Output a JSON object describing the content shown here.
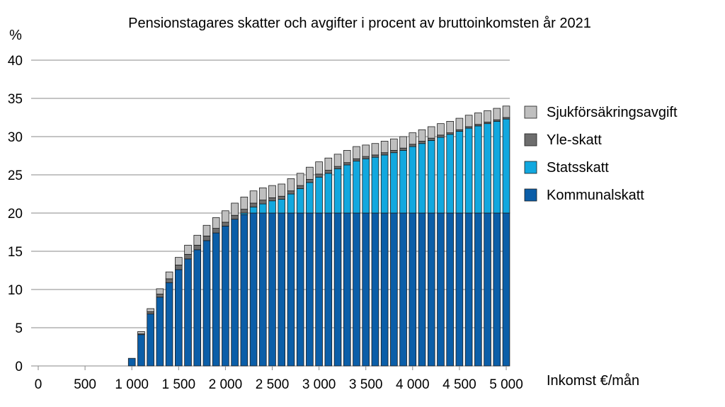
{
  "chart_data": {
    "type": "bar",
    "stacked": true,
    "title": "Pensionstagares skatter och avgifter i procent av bruttoinkomsten år 2021",
    "ylabel": "%",
    "xlabel": "Inkomst €/mån",
    "ylim": [
      0,
      40
    ],
    "xlim": [
      0,
      5000
    ],
    "grid": "horizontal",
    "legend_position": "right",
    "y_ticks": [
      "0",
      "5",
      "10",
      "15",
      "20",
      "25",
      "30",
      "35",
      "40"
    ],
    "x_ticks": [
      "0",
      "500",
      "1 000",
      "1 500",
      "2 000",
      "2 500",
      "3 000",
      "3 500",
      "4 000",
      "4 500",
      "5 000"
    ],
    "legend_order": [
      "Sjukförsäkringsavgift",
      "Yle-skatt",
      "Statsskatt",
      "Kommunalskatt"
    ],
    "colors": {
      "Kommunalskatt": "#0b5ea8",
      "Statsskatt": "#12a8df",
      "Yle-skatt": "#6d6d6d",
      "Sjukförsäkringsavgift": "#bfbfbf"
    },
    "x": [
      1000,
      1100,
      1200,
      1300,
      1400,
      1500,
      1600,
      1700,
      1800,
      1900,
      2000,
      2100,
      2200,
      2300,
      2400,
      2500,
      2600,
      2700,
      2800,
      2900,
      3000,
      3100,
      3200,
      3300,
      3400,
      3500,
      3600,
      3700,
      3800,
      3900,
      4000,
      4100,
      4200,
      4300,
      4400,
      4500,
      4600,
      4700,
      4800,
      4900,
      5000
    ],
    "series": [
      {
        "name": "Kommunalskatt",
        "values": [
          1.0,
          4.1,
          6.8,
          9.0,
          10.9,
          12.6,
          14.0,
          15.2,
          16.4,
          17.4,
          18.3,
          19.2,
          19.8,
          20.0,
          20.0,
          20.0,
          20.0,
          20.0,
          20.0,
          20.0,
          20.0,
          20.0,
          20.0,
          20.0,
          20.0,
          20.0,
          20.0,
          20.0,
          20.0,
          20.0,
          20.0,
          20.0,
          20.0,
          20.0,
          20.0,
          20.0,
          20.0,
          20.0,
          20.0,
          20.0,
          20.0
        ]
      },
      {
        "name": "Statsskatt",
        "values": [
          0,
          0,
          0,
          0,
          0,
          0,
          0,
          0,
          0,
          0,
          0,
          0,
          0.2,
          0.8,
          1.2,
          1.6,
          1.8,
          2.5,
          3.2,
          4.0,
          4.7,
          5.2,
          5.8,
          6.3,
          6.8,
          7.1,
          7.3,
          7.6,
          7.9,
          8.2,
          8.7,
          9.1,
          9.5,
          9.9,
          10.3,
          10.7,
          11.1,
          11.4,
          11.7,
          12.0,
          12.3
        ]
      },
      {
        "name": "Yle-skatt",
        "values": [
          0,
          0.1,
          0.3,
          0.4,
          0.5,
          0.6,
          0.6,
          0.6,
          0.6,
          0.6,
          0.5,
          0.5,
          0.5,
          0.5,
          0.5,
          0.4,
          0.4,
          0.4,
          0.4,
          0.4,
          0.4,
          0.4,
          0.3,
          0.3,
          0.3,
          0.3,
          0.3,
          0.3,
          0.3,
          0.3,
          0.3,
          0.3,
          0.3,
          0.3,
          0.2,
          0.2,
          0.2,
          0.2,
          0.2,
          0.2,
          0.2
        ]
      },
      {
        "name": "Sjukförsäkringsavgift",
        "values": [
          0,
          0.3,
          0.4,
          0.7,
          0.9,
          1.0,
          1.2,
          1.3,
          1.4,
          1.4,
          1.5,
          1.6,
          1.6,
          1.6,
          1.6,
          1.6,
          1.6,
          1.6,
          1.6,
          1.6,
          1.6,
          1.6,
          1.6,
          1.6,
          1.6,
          1.5,
          1.5,
          1.5,
          1.5,
          1.5,
          1.5,
          1.5,
          1.5,
          1.5,
          1.5,
          1.5,
          1.5,
          1.5,
          1.5,
          1.5,
          1.5
        ]
      }
    ]
  }
}
